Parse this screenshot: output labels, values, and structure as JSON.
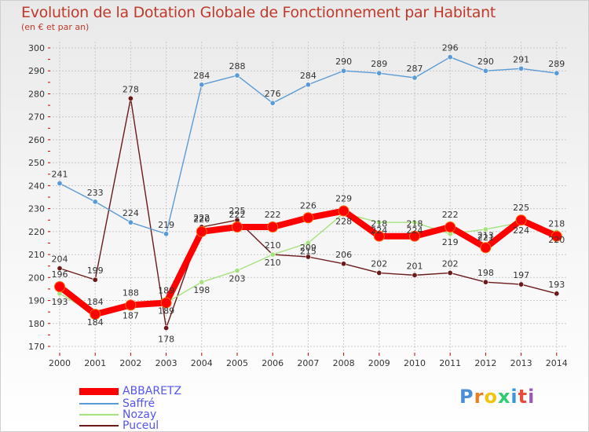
{
  "header": {
    "title": "Evolution de la Dotation Globale de Fonctionnement par Habitant",
    "subtitle": "(en € et par an)"
  },
  "chart_data": {
    "type": "line",
    "title": "Evolution de la Dotation Globale de Fonctionnement par Habitant",
    "subtitle": "(en € et par an)",
    "xlabel": "",
    "ylabel": "",
    "ylim": [
      170,
      300
    ],
    "y_ticks": [
      170,
      180,
      190,
      200,
      210,
      220,
      230,
      240,
      250,
      260,
      270,
      280,
      290,
      300
    ],
    "grid": true,
    "categories": [
      "2000",
      "2001",
      "2002",
      "2003",
      "2004",
      "2005",
      "2006",
      "2007",
      "2008",
      "2009",
      "2010",
      "2011",
      "2012",
      "2013",
      "2014"
    ],
    "legend_position": "bottom-left",
    "series": [
      {
        "name": "ABBARETZ",
        "color": "#ff0000",
        "values": [
          196,
          184,
          188,
          189,
          220,
          222,
          222,
          226,
          229,
          218,
          218,
          222,
          213,
          225,
          218
        ]
      },
      {
        "name": "Saffré",
        "color": "#5b9bd5",
        "values": [
          241,
          233,
          224,
          219,
          284,
          288,
          276,
          284,
          290,
          289,
          287,
          296,
          290,
          291,
          289
        ]
      },
      {
        "name": "Nozay",
        "color": "#a6e27f",
        "values": [
          193,
          184,
          187,
          189,
          198,
          203,
          210,
          215,
          228,
          224,
          224,
          219,
          221,
          224,
          220
        ]
      },
      {
        "name": "Puceul",
        "color": "#6b1a1a",
        "values": [
          204,
          199,
          278,
          178,
          222,
          225,
          210,
          209,
          206,
          202,
          201,
          202,
          198,
          197,
          193
        ]
      }
    ]
  },
  "brand": {
    "letters": [
      "P",
      "r",
      "o",
      "x",
      "i",
      "t",
      "i"
    ],
    "colors": [
      "#4a90d9",
      "#e67e22",
      "#f1c40f",
      "#2ecc71",
      "#3498db",
      "#e74c3c",
      "#9b59b6"
    ]
  }
}
